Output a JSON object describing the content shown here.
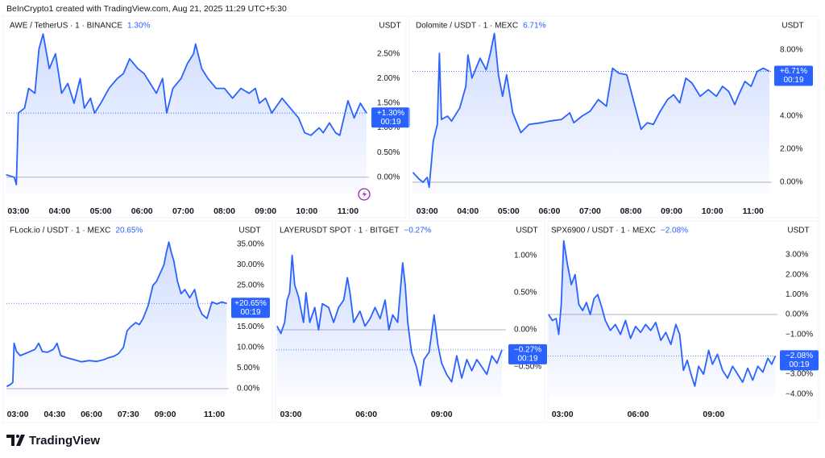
{
  "header": {
    "text": "BeInCrypto1 created with TradingView.com, Aug 21, 2025 11:29 UTC+5:30"
  },
  "footer": {
    "brand": "TradingView"
  },
  "chart_data": [
    {
      "type": "line",
      "title": "AWE / TetherUS · 1 · BINANCE",
      "change_label": "1.30%",
      "axis_label": "USDT",
      "color": "#2962ff",
      "zero_line": true,
      "xlim": [
        2.71,
        11.51
      ],
      "ylim": [
        -0.33,
        3.1
      ],
      "xticks": [
        {
          "value": 3,
          "label": "03:00"
        },
        {
          "value": 4,
          "label": "04:00"
        },
        {
          "value": 5,
          "label": "05:00"
        },
        {
          "value": 6,
          "label": "06:00"
        },
        {
          "value": 7,
          "label": "07:00"
        },
        {
          "value": 8,
          "label": "08:00"
        },
        {
          "value": 9,
          "label": "09:00"
        },
        {
          "value": 10,
          "label": "10:00"
        },
        {
          "value": 11,
          "label": "11:00"
        }
      ],
      "yticks": [
        {
          "value": 0,
          "label": "0.00%"
        },
        {
          "value": 0.5,
          "label": "0.50%"
        },
        {
          "value": 1,
          "label": "1.00%"
        },
        {
          "value": 1.5,
          "label": "1.50%"
        },
        {
          "value": 2,
          "label": "2.00%"
        },
        {
          "value": 2.5,
          "label": "2.50%"
        }
      ],
      "price_tag": {
        "value": 1.3,
        "label": "+1.30%",
        "timer": "00:19"
      },
      "x": [
        2.7,
        2.9,
        2.95,
        3.0,
        3.15,
        3.25,
        3.4,
        3.5,
        3.6,
        3.75,
        3.9,
        4.05,
        4.2,
        4.35,
        4.5,
        4.6,
        4.75,
        4.85,
        5.0,
        5.2,
        5.4,
        5.55,
        5.7,
        5.9,
        6.05,
        6.2,
        6.35,
        6.5,
        6.6,
        6.75,
        6.95,
        7.1,
        7.25,
        7.3,
        7.45,
        7.6,
        7.8,
        8.0,
        8.2,
        8.4,
        8.6,
        8.75,
        8.85,
        9.0,
        9.15,
        9.4,
        9.6,
        9.8,
        9.95,
        10.1,
        10.3,
        10.4,
        10.55,
        10.7,
        10.8,
        10.9,
        11.0,
        11.15,
        11.3,
        11.45
      ],
      "values": [
        0.05,
        0.0,
        -0.15,
        1.3,
        1.4,
        1.8,
        1.7,
        2.6,
        2.9,
        2.2,
        2.5,
        1.7,
        1.9,
        1.5,
        2.0,
        1.4,
        1.6,
        1.3,
        1.5,
        1.8,
        2.0,
        2.1,
        2.4,
        2.2,
        2.1,
        1.9,
        1.7,
        2.0,
        1.3,
        1.8,
        2.0,
        2.3,
        2.5,
        2.7,
        2.2,
        2.0,
        1.8,
        1.8,
        1.6,
        1.8,
        1.7,
        1.8,
        1.5,
        1.6,
        1.3,
        1.6,
        1.4,
        1.2,
        0.9,
        0.85,
        1.0,
        0.9,
        1.1,
        0.9,
        0.85,
        1.2,
        1.55,
        1.2,
        1.5,
        1.3
      ]
    },
    {
      "type": "line",
      "title": "Dolomite / USDT · 1 · MEXC",
      "change_label": "6.71%",
      "axis_label": "USDT",
      "color": "#2962ff",
      "zero_line": true,
      "xlim": [
        2.64,
        11.46
      ],
      "ylim": [
        -0.68,
        9.56
      ],
      "xticks": [
        {
          "value": 3,
          "label": "03:00"
        },
        {
          "value": 4,
          "label": "04:00"
        },
        {
          "value": 5,
          "label": "05:00"
        },
        {
          "value": 6,
          "label": "06:00"
        },
        {
          "value": 7,
          "label": "07:00"
        },
        {
          "value": 8,
          "label": "08:00"
        },
        {
          "value": 9,
          "label": "09:00"
        },
        {
          "value": 10,
          "label": "10:00"
        },
        {
          "value": 11,
          "label": "11:00"
        }
      ],
      "yticks": [
        {
          "value": 0,
          "label": "0.00%"
        },
        {
          "value": 2,
          "label": "2.00%"
        },
        {
          "value": 4,
          "label": "4.00%"
        },
        {
          "value": 8,
          "label": "8.00%"
        }
      ],
      "price_tag": {
        "value": 6.71,
        "label": "+6.71%",
        "timer": "00:19"
      },
      "x": [
        2.65,
        2.8,
        2.9,
        3.0,
        3.05,
        3.15,
        3.25,
        3.3,
        3.35,
        3.5,
        3.6,
        3.8,
        3.95,
        4.0,
        4.1,
        4.3,
        4.45,
        4.55,
        4.65,
        4.75,
        4.85,
        4.95,
        5.1,
        5.3,
        5.5,
        5.8,
        6.0,
        6.3,
        6.5,
        6.6,
        6.8,
        7.0,
        7.2,
        7.4,
        7.55,
        7.7,
        7.9,
        8.1,
        8.25,
        8.4,
        8.55,
        8.7,
        8.9,
        9.05,
        9.2,
        9.35,
        9.5,
        9.7,
        9.9,
        10.1,
        10.25,
        10.4,
        10.55,
        10.65,
        10.8,
        10.95,
        11.1,
        11.25,
        11.4
      ],
      "values": [
        0.6,
        0.2,
        0.0,
        0.3,
        -0.3,
        2.5,
        3.5,
        7.8,
        3.8,
        4.0,
        3.7,
        4.5,
        5.8,
        7.7,
        6.3,
        7.5,
        6.8,
        7.8,
        9.0,
        6.5,
        5.2,
        6.5,
        4.2,
        3.0,
        3.5,
        3.6,
        3.7,
        3.8,
        4.2,
        3.6,
        4.0,
        4.3,
        5.0,
        4.6,
        6.9,
        6.6,
        6.5,
        4.6,
        3.2,
        3.6,
        3.5,
        4.2,
        5.0,
        5.3,
        4.8,
        6.3,
        6.0,
        5.2,
        5.6,
        5.2,
        5.8,
        5.5,
        4.7,
        5.3,
        6.1,
        5.8,
        6.7,
        6.9,
        6.71
      ]
    },
    {
      "type": "line",
      "title": "FLock.io / USDT · 1 · MEXC",
      "change_label": "20.65%",
      "axis_label": "USDT",
      "color": "#2962ff",
      "zero_line": true,
      "xlim": [
        2.54,
        11.59
      ],
      "ylim": [
        -1.96,
        37.5
      ],
      "xticks": [
        {
          "value": 3,
          "label": "03:00"
        },
        {
          "value": 4.5,
          "label": "04:30"
        },
        {
          "value": 6,
          "label": "06:00"
        },
        {
          "value": 7.5,
          "label": "07:30"
        },
        {
          "value": 9,
          "label": "09:00"
        },
        {
          "value": 11,
          "label": "11:00"
        }
      ],
      "yticks": [
        {
          "value": 0,
          "label": "0.00%"
        },
        {
          "value": 5,
          "label": "5.00%"
        },
        {
          "value": 10,
          "label": "10.00%"
        },
        {
          "value": 15,
          "label": "15.00%"
        },
        {
          "value": 25,
          "label": "25.00%"
        },
        {
          "value": 30,
          "label": "30.00%"
        },
        {
          "value": 35,
          "label": "35.00%"
        }
      ],
      "price_tag": {
        "value": 20.65,
        "label": "+20.65%",
        "timer": "00:19"
      },
      "x": [
        2.55,
        2.7,
        2.8,
        2.85,
        2.95,
        3.1,
        3.3,
        3.5,
        3.7,
        3.85,
        4.0,
        4.2,
        4.45,
        4.6,
        4.75,
        5.0,
        5.3,
        5.6,
        5.9,
        6.2,
        6.5,
        6.7,
        6.9,
        7.1,
        7.3,
        7.45,
        7.6,
        7.8,
        7.95,
        8.1,
        8.3,
        8.5,
        8.65,
        8.8,
        8.95,
        9.05,
        9.15,
        9.25,
        9.35,
        9.5,
        9.65,
        9.8,
        10.0,
        10.2,
        10.35,
        10.5,
        10.7,
        10.9,
        11.1,
        11.3,
        11.5
      ],
      "values": [
        0.5,
        1.0,
        1.5,
        11,
        9,
        8,
        8.5,
        9,
        9.5,
        11,
        9,
        8.8,
        9.5,
        11,
        8,
        7.5,
        7,
        6.5,
        6.8,
        6.6,
        7,
        7.5,
        7.8,
        8.5,
        10,
        14,
        15,
        16,
        15.5,
        17,
        20,
        25,
        26,
        28,
        30,
        33,
        35.5,
        33,
        31,
        26,
        23,
        24,
        22,
        24,
        20,
        18,
        17,
        21,
        20.5,
        21,
        20.65
      ]
    },
    {
      "type": "line",
      "title": "LAYERUSDT SPOT · 1 · BITGET",
      "change_label": "−0.27%",
      "axis_label": "USDT",
      "color": "#2962ff",
      "zero_line": true,
      "xlim": [
        2.42,
        11.56
      ],
      "ylim": [
        -0.9,
        1.29
      ],
      "xticks": [
        {
          "value": 3,
          "label": "03:00"
        },
        {
          "value": 6,
          "label": "06:00"
        },
        {
          "value": 9,
          "label": "09:00"
        }
      ],
      "yticks": [
        {
          "value": -0.5,
          "label": "−0.50%"
        },
        {
          "value": 0,
          "label": "0.00%"
        },
        {
          "value": 0.5,
          "label": "0.50%"
        },
        {
          "value": 1,
          "label": "1.00%"
        }
      ],
      "price_tag": {
        "value": -0.27,
        "label": "−0.27%",
        "timer": "00:19"
      },
      "x": [
        2.45,
        2.6,
        2.75,
        2.85,
        2.95,
        3.05,
        3.15,
        3.3,
        3.5,
        3.6,
        3.75,
        3.95,
        4.1,
        4.25,
        4.5,
        4.7,
        4.9,
        5.1,
        5.25,
        5.35,
        5.5,
        5.75,
        5.95,
        6.15,
        6.35,
        6.55,
        6.75,
        6.9,
        7.05,
        7.25,
        7.45,
        7.55,
        7.65,
        7.8,
        8.0,
        8.15,
        8.3,
        8.5,
        8.7,
        8.85,
        9.0,
        9.2,
        9.4,
        9.6,
        9.8,
        10.0,
        10.2,
        10.4,
        10.6,
        10.8,
        11.0,
        11.2,
        11.4
      ],
      "values": [
        0.05,
        -0.05,
        0.1,
        0.4,
        0.5,
        1.0,
        0.6,
        0.45,
        0.1,
        0.5,
        0.1,
        0.3,
        0.0,
        0.35,
        0.3,
        0.1,
        0.3,
        0.4,
        0.7,
        0.5,
        0.1,
        0.25,
        0.05,
        0.15,
        0.3,
        0.15,
        0.4,
        0.0,
        0.2,
        0.1,
        0.9,
        0.6,
        0.1,
        -0.3,
        -0.5,
        -0.75,
        -0.4,
        -0.3,
        0.2,
        -0.2,
        -0.45,
        -0.6,
        -0.7,
        -0.35,
        -0.65,
        -0.4,
        -0.55,
        -0.4,
        -0.5,
        -0.6,
        -0.35,
        -0.45,
        -0.27
      ]
    },
    {
      "type": "line",
      "title": "SPX6900 / USDT · 1 · MEXC",
      "change_label": "−2.08%",
      "axis_label": "USDT",
      "color": "#2962ff",
      "zero_line": true,
      "xlim": [
        2.42,
        11.53
      ],
      "ylim": [
        -4.13,
        4.05
      ],
      "xticks": [
        {
          "value": 3,
          "label": "03:00"
        },
        {
          "value": 6,
          "label": "06:00"
        },
        {
          "value": 9,
          "label": "09:00"
        }
      ],
      "yticks": [
        {
          "value": -4,
          "label": "−4.00%"
        },
        {
          "value": -3,
          "label": "−3.00%"
        },
        {
          "value": -1,
          "label": "−1.00%"
        },
        {
          "value": 0,
          "label": "0.00%"
        },
        {
          "value": 1,
          "label": "1.00%"
        },
        {
          "value": 2,
          "label": "2.00%"
        },
        {
          "value": 3,
          "label": "3.00%"
        }
      ],
      "price_tag": {
        "value": -2.08,
        "label": "−2.08%",
        "timer": "00:19"
      },
      "x": [
        2.45,
        2.6,
        2.75,
        2.85,
        2.95,
        3.05,
        3.2,
        3.35,
        3.5,
        3.65,
        3.8,
        3.95,
        4.1,
        4.25,
        4.4,
        4.55,
        4.7,
        4.9,
        5.1,
        5.3,
        5.5,
        5.7,
        5.9,
        6.1,
        6.3,
        6.5,
        6.7,
        6.9,
        7.1,
        7.3,
        7.5,
        7.65,
        7.8,
        7.95,
        8.1,
        8.25,
        8.4,
        8.6,
        8.8,
        8.95,
        9.15,
        9.35,
        9.55,
        9.75,
        9.95,
        10.15,
        10.35,
        10.55,
        10.75,
        10.95,
        11.15,
        11.3,
        11.45
      ],
      "values": [
        0.0,
        -0.3,
        -0.2,
        -1.0,
        0.5,
        3.7,
        2.5,
        1.5,
        2.0,
        0.5,
        0.2,
        0.6,
        0.0,
        0.8,
        1.0,
        0.4,
        -0.3,
        -0.8,
        -0.5,
        -1.0,
        -0.3,
        -1.2,
        -0.6,
        -0.9,
        -0.5,
        -0.8,
        -0.4,
        -1.3,
        -0.9,
        -1.5,
        -0.5,
        -1.0,
        -2.8,
        -2.3,
        -3.0,
        -3.6,
        -2.6,
        -3.0,
        -1.8,
        -2.5,
        -2.0,
        -2.8,
        -3.2,
        -2.6,
        -3.0,
        -3.4,
        -2.7,
        -3.3,
        -2.6,
        -2.9,
        -2.2,
        -2.5,
        -2.08
      ]
    }
  ]
}
